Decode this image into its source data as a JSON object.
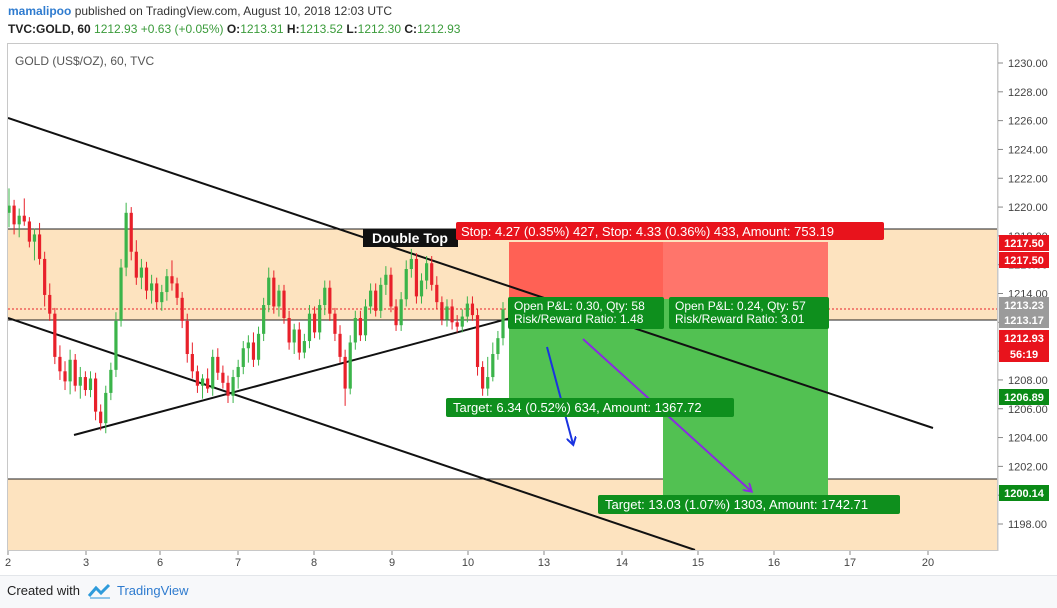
{
  "header": {
    "author": "mamalipoo",
    "published_text": "published on TradingView.com, August 10, 2018 12:03 UTC",
    "symbol": "TVC:GOLD, 60",
    "last": "1212.93",
    "change": "+0.63 (+0.05%)",
    "open_label": "O:",
    "open": "1213.31",
    "high_label": "H:",
    "high": "1213.52",
    "low_label": "L:",
    "low": "1212.30",
    "close_label": "C:",
    "close": "1212.93"
  },
  "pane_title": "GOLD (US$/OZ), 60, TVC",
  "price_axis": {
    "ticks": [
      "1230.00",
      "1228.00",
      "1226.00",
      "1224.00",
      "1222.00",
      "1220.00",
      "1218.00",
      "1216.00",
      "1214.00",
      "1212.00",
      "1210.00",
      "1208.00",
      "1206.00",
      "1204.00",
      "1202.00",
      "1200.00",
      "1198.00"
    ],
    "labels": [
      {
        "text": "1217.50",
        "color": "#e8131c"
      },
      {
        "text": "1217.50",
        "color": "#e8131c"
      },
      {
        "text": "1213.23",
        "color": "#9b9b9b"
      },
      {
        "text": "1213.17",
        "color": "#9b9b9b"
      },
      {
        "text": "1212.93",
        "color": "#e8131c"
      },
      {
        "text": "56:19",
        "color": "#e8131c"
      },
      {
        "text": "1206.89",
        "color": "#0a8a16"
      },
      {
        "text": "1200.14",
        "color": "#0a8a16"
      }
    ]
  },
  "time_axis": [
    "2",
    "3",
    "6",
    "7",
    "8",
    "9",
    "10",
    "13",
    "14",
    "15",
    "16",
    "17",
    "20"
  ],
  "annotations": {
    "double_top": "Double Top",
    "stop": "Stop: 4.27 (0.35%) 427,  Stop: 4.33 (0.36%) 433, Amount: 753.19",
    "pos1_line1": "Open P&L: 0.30, Qty: 58",
    "pos1_line2": "Risk/Reward Ratio: 1.48",
    "pos2_line1": "Open P&L: 0.24, Qty: 57",
    "pos2_line2": "Risk/Reward Ratio: 3.01",
    "target1": "Target: 6.34 (0.52%) 634, Amount: 1367.72",
    "target2": "Target: 13.03 (1.07%) 1303, Amount: 1742.71"
  },
  "colors": {
    "up": "#3bb44a",
    "down": "#e8202a",
    "zone": "#fde3bf",
    "stop_zone": "#ff5a4f",
    "target_zone": "#52c152",
    "arrow_blue": "#1a33e0",
    "arrow_purple": "#8a2be2"
  },
  "candles": [
    [
      1219.6,
      1221.3,
      1218.6,
      1220.1
    ],
    [
      1220.1,
      1220.5,
      1218.1,
      1218.8
    ],
    [
      1218.8,
      1219.9,
      1217.9,
      1219.4
    ],
    [
      1219.4,
      1220.6,
      1218.7,
      1219.0
    ],
    [
      1219.0,
      1219.3,
      1217.2,
      1217.6
    ],
    [
      1217.6,
      1218.5,
      1216.3,
      1218.1
    ],
    [
      1218.1,
      1218.9,
      1216.0,
      1216.4
    ],
    [
      1216.4,
      1216.9,
      1213.1,
      1213.9
    ],
    [
      1213.9,
      1214.7,
      1212.1,
      1212.6
    ],
    [
      1212.6,
      1213.0,
      1209.1,
      1209.6
    ],
    [
      1209.6,
      1210.4,
      1208.0,
      1208.6
    ],
    [
      1208.6,
      1209.3,
      1207.3,
      1207.9
    ],
    [
      1207.9,
      1210.1,
      1207.0,
      1209.4
    ],
    [
      1209.4,
      1209.8,
      1207.2,
      1207.6
    ],
    [
      1207.6,
      1208.9,
      1206.7,
      1208.2
    ],
    [
      1208.2,
      1208.6,
      1206.9,
      1207.3
    ],
    [
      1207.3,
      1208.6,
      1206.8,
      1208.1
    ],
    [
      1208.1,
      1208.5,
      1205.2,
      1205.8
    ],
    [
      1205.8,
      1206.3,
      1204.5,
      1205.0
    ],
    [
      1205.0,
      1207.6,
      1204.3,
      1207.1
    ],
    [
      1207.1,
      1209.2,
      1206.6,
      1208.7
    ],
    [
      1208.7,
      1212.7,
      1208.2,
      1212.1
    ],
    [
      1212.1,
      1216.4,
      1211.7,
      1215.8
    ],
    [
      1215.8,
      1220.3,
      1215.2,
      1219.6
    ],
    [
      1219.6,
      1220.0,
      1216.3,
      1216.9
    ],
    [
      1216.9,
      1217.7,
      1214.6,
      1215.1
    ],
    [
      1215.1,
      1216.4,
      1214.3,
      1215.8
    ],
    [
      1215.8,
      1216.2,
      1213.6,
      1214.2
    ],
    [
      1214.2,
      1215.3,
      1213.3,
      1214.7
    ],
    [
      1214.7,
      1215.1,
      1212.9,
      1213.4
    ],
    [
      1213.4,
      1214.6,
      1212.8,
      1214.1
    ],
    [
      1214.1,
      1215.7,
      1213.5,
      1215.2
    ],
    [
      1215.2,
      1216.3,
      1214.2,
      1214.7
    ],
    [
      1214.7,
      1215.1,
      1213.2,
      1213.7
    ],
    [
      1213.7,
      1214.1,
      1211.6,
      1212.1
    ],
    [
      1212.1,
      1212.6,
      1209.2,
      1209.8
    ],
    [
      1209.8,
      1210.6,
      1208.1,
      1208.6
    ],
    [
      1208.6,
      1209.0,
      1207.1,
      1207.6
    ],
    [
      1207.6,
      1208.4,
      1206.7,
      1208.1
    ],
    [
      1208.1,
      1208.8,
      1207.1,
      1207.4
    ],
    [
      1207.4,
      1210.1,
      1206.9,
      1209.6
    ],
    [
      1209.6,
      1210.2,
      1208.0,
      1208.5
    ],
    [
      1208.5,
      1209.0,
      1207.4,
      1207.8
    ],
    [
      1207.8,
      1208.3,
      1206.4,
      1206.9
    ],
    [
      1206.9,
      1208.7,
      1206.4,
      1208.2
    ],
    [
      1208.2,
      1209.4,
      1207.4,
      1208.9
    ],
    [
      1208.9,
      1210.7,
      1208.4,
      1210.2
    ],
    [
      1210.2,
      1211.1,
      1209.2,
      1210.6
    ],
    [
      1210.6,
      1211.3,
      1208.9,
      1209.4
    ],
    [
      1209.4,
      1211.7,
      1209.0,
      1211.2
    ],
    [
      1211.2,
      1213.7,
      1210.7,
      1213.2
    ],
    [
      1213.2,
      1215.8,
      1212.7,
      1215.1
    ],
    [
      1215.1,
      1215.6,
      1212.6,
      1213.1
    ],
    [
      1213.1,
      1214.6,
      1212.4,
      1214.2
    ],
    [
      1214.2,
      1214.6,
      1211.9,
      1212.3
    ],
    [
      1212.3,
      1212.8,
      1210.1,
      1210.6
    ],
    [
      1210.6,
      1211.9,
      1209.8,
      1211.5
    ],
    [
      1211.5,
      1212.0,
      1209.4,
      1209.9
    ],
    [
      1209.9,
      1211.2,
      1209.5,
      1210.7
    ],
    [
      1210.7,
      1213.2,
      1210.2,
      1212.6
    ],
    [
      1212.6,
      1213.1,
      1210.9,
      1211.3
    ],
    [
      1211.3,
      1213.6,
      1210.8,
      1213.2
    ],
    [
      1213.2,
      1214.9,
      1212.5,
      1214.4
    ],
    [
      1214.4,
      1214.9,
      1212.1,
      1212.6
    ],
    [
      1212.6,
      1213.0,
      1210.7,
      1211.2
    ],
    [
      1211.2,
      1211.8,
      1209.2,
      1209.6
    ],
    [
      1209.6,
      1210.1,
      1206.2,
      1207.4
    ],
    [
      1207.4,
      1211.1,
      1207.0,
      1210.6
    ],
    [
      1210.6,
      1212.8,
      1210.1,
      1212.3
    ],
    [
      1212.3,
      1212.8,
      1210.7,
      1211.1
    ],
    [
      1211.1,
      1213.6,
      1210.7,
      1213.1
    ],
    [
      1213.1,
      1214.7,
      1212.6,
      1214.2
    ],
    [
      1214.2,
      1214.7,
      1212.4,
      1212.8
    ],
    [
      1212.8,
      1215.1,
      1212.3,
      1214.6
    ],
    [
      1214.6,
      1215.9,
      1213.9,
      1215.3
    ],
    [
      1215.3,
      1215.8,
      1212.7,
      1213.1
    ],
    [
      1213.1,
      1213.6,
      1211.4,
      1211.8
    ],
    [
      1211.8,
      1214.1,
      1211.4,
      1213.6
    ],
    [
      1213.6,
      1216.3,
      1213.1,
      1215.7
    ],
    [
      1215.7,
      1217.1,
      1215.1,
      1216.4
    ],
    [
      1216.4,
      1216.8,
      1213.3,
      1213.8
    ],
    [
      1213.8,
      1215.4,
      1213.3,
      1214.9
    ],
    [
      1214.9,
      1216.6,
      1214.3,
      1216.1
    ],
    [
      1216.1,
      1216.6,
      1214.2,
      1214.6
    ],
    [
      1214.6,
      1215.2,
      1212.9,
      1213.4
    ],
    [
      1213.4,
      1213.8,
      1211.8,
      1212.2
    ],
    [
      1212.2,
      1213.6,
      1211.7,
      1213.1
    ],
    [
      1213.1,
      1213.6,
      1211.5,
      1212.0
    ],
    [
      1212.0,
      1212.5,
      1211.3,
      1211.7
    ],
    [
      1211.7,
      1212.9,
      1211.3,
      1212.4
    ],
    [
      1212.4,
      1213.8,
      1212.0,
      1213.3
    ],
    [
      1213.3,
      1213.8,
      1212.1,
      1212.5
    ],
    [
      1212.5,
      1212.9,
      1208.3,
      1208.9
    ],
    [
      1208.9,
      1209.3,
      1206.9,
      1207.4
    ],
    [
      1207.4,
      1209.6,
      1206.9,
      1208.2
    ],
    [
      1208.2,
      1210.6,
      1207.9,
      1209.8
    ],
    [
      1209.8,
      1211.4,
      1209.4,
      1210.9
    ],
    [
      1210.9,
      1213.4,
      1210.4,
      1212.9
    ]
  ]
}
